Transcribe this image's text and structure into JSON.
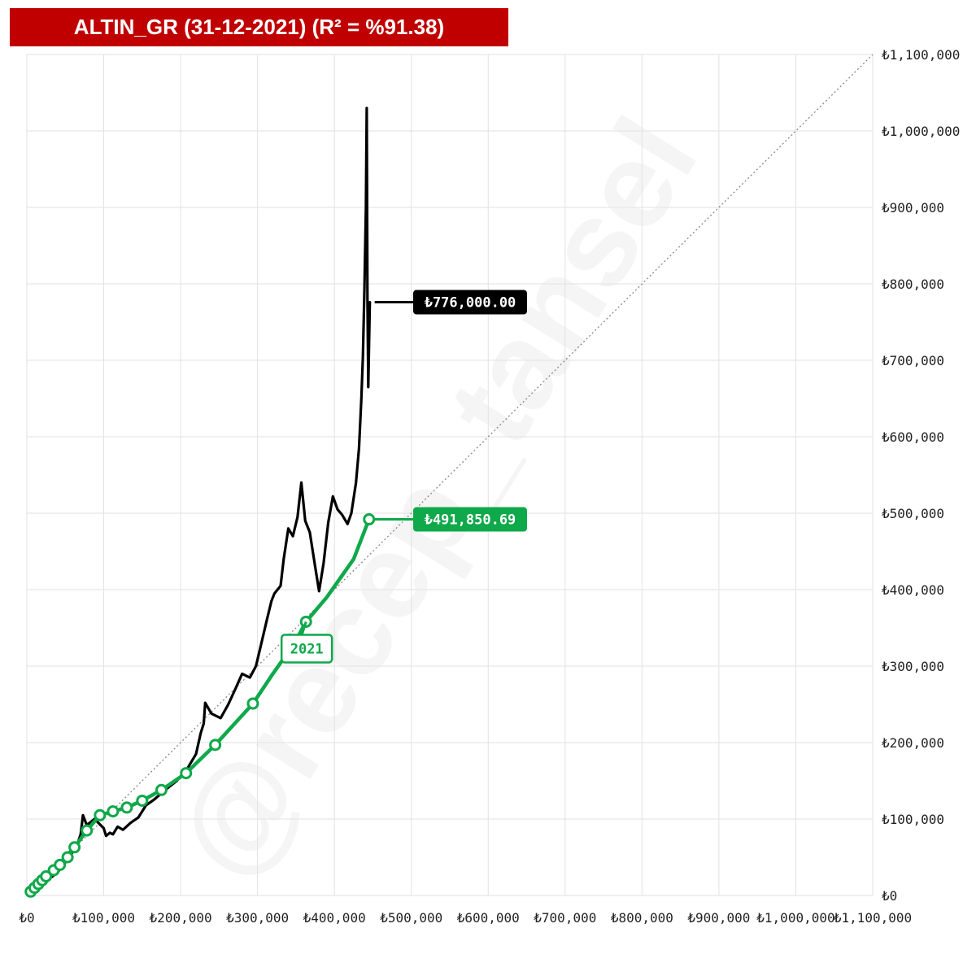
{
  "title": "ALTIN_GR (31-12-2021) (R² = %91.38)",
  "colors": {
    "title_bg": "#c00000",
    "price": "#000000",
    "trend": "#0fa84a",
    "grid": "#e2e2e2",
    "diagonal": "#888888"
  },
  "chart_data": {
    "type": "line",
    "title": "ALTIN_GR (31-12-2021) (R² = %91.38)",
    "xlim": [
      0,
      1100000
    ],
    "ylim": [
      0,
      1100000
    ],
    "x_ticks": [
      "₺0",
      "₺100,000",
      "₺200,000",
      "₺300,000",
      "₺400,000",
      "₺500,000",
      "₺600,000",
      "₺700,000",
      "₺800,000",
      "₺900,000",
      "₺1,000,000",
      "₺1,100,000"
    ],
    "y_ticks": [
      "₺0",
      "₺100,000",
      "₺200,000",
      "₺300,000",
      "₺400,000",
      "₺500,000",
      "₺600,000",
      "₺700,000",
      "₺800,000",
      "₺900,000",
      "₺1,000,000",
      "₺1,100,000"
    ],
    "grid": true,
    "reference_line": {
      "from": [
        0,
        0
      ],
      "to": [
        1100000,
        1100000
      ],
      "style": "dotted"
    },
    "series": [
      {
        "color": "#000000",
        "points": [
          [
            5000,
            5000
          ],
          [
            20000,
            15000
          ],
          [
            40000,
            30000
          ],
          [
            55000,
            50000
          ],
          [
            65000,
            65000
          ],
          [
            70000,
            80000
          ],
          [
            73000,
            105000
          ],
          [
            78000,
            92000
          ],
          [
            88000,
            100000
          ],
          [
            100000,
            88000
          ],
          [
            103000,
            78000
          ],
          [
            108000,
            82000
          ],
          [
            112000,
            80000
          ],
          [
            118000,
            90000
          ],
          [
            125000,
            86000
          ],
          [
            135000,
            95000
          ],
          [
            145000,
            102000
          ],
          [
            155000,
            118000
          ],
          [
            165000,
            125000
          ],
          [
            180000,
            138000
          ],
          [
            195000,
            150000
          ],
          [
            210000,
            168000
          ],
          [
            220000,
            185000
          ],
          [
            226000,
            212000
          ],
          [
            230000,
            225000
          ],
          [
            232000,
            252000
          ],
          [
            240000,
            238000
          ],
          [
            252000,
            232000
          ],
          [
            262000,
            250000
          ],
          [
            272000,
            272000
          ],
          [
            280000,
            290000
          ],
          [
            290000,
            285000
          ],
          [
            298000,
            300000
          ],
          [
            305000,
            330000
          ],
          [
            312000,
            360000
          ],
          [
            318000,
            385000
          ],
          [
            322000,
            395000
          ],
          [
            330000,
            405000
          ],
          [
            334000,
            440000
          ],
          [
            340000,
            480000
          ],
          [
            346000,
            470000
          ],
          [
            352000,
            495000
          ],
          [
            357000,
            540000
          ],
          [
            362000,
            490000
          ],
          [
            368000,
            475000
          ],
          [
            375000,
            430000
          ],
          [
            380000,
            398000
          ],
          [
            386000,
            435000
          ],
          [
            392000,
            488000
          ],
          [
            398000,
            522000
          ],
          [
            404000,
            505000
          ],
          [
            410000,
            498000
          ],
          [
            417000,
            486000
          ],
          [
            422000,
            500000
          ],
          [
            428000,
            540000
          ],
          [
            432000,
            585000
          ],
          [
            435000,
            650000
          ],
          [
            437000,
            705000
          ],
          [
            439000,
            795000
          ],
          [
            441000,
            900000
          ],
          [
            442000,
            1030000
          ],
          [
            443000,
            780000
          ],
          [
            444000,
            665000
          ],
          [
            446000,
            776000
          ]
        ]
      },
      {
        "color": "#0fa84a",
        "points": [
          [
            5000,
            5000
          ],
          [
            15000,
            15000
          ],
          [
            25000,
            25000
          ],
          [
            40000,
            38000
          ],
          [
            50000,
            50000
          ],
          [
            62000,
            63000
          ],
          [
            78000,
            85000
          ],
          [
            95000,
            105000
          ],
          [
            112000,
            110000
          ],
          [
            130000,
            115000
          ],
          [
            150000,
            124000
          ],
          [
            175000,
            138000
          ],
          [
            207000,
            160000
          ],
          [
            245000,
            197000
          ],
          [
            294000,
            251000
          ],
          [
            320000,
            290000
          ],
          [
            348000,
            330000
          ],
          [
            363000,
            358000
          ],
          [
            390000,
            390000
          ],
          [
            425000,
            440000
          ],
          [
            445000,
            492000
          ]
        ],
        "markers": [
          [
            5000,
            5000
          ],
          [
            10000,
            10000
          ],
          [
            15000,
            15000
          ],
          [
            20000,
            20000
          ],
          [
            25000,
            25000
          ],
          [
            35000,
            33000
          ],
          [
            43000,
            40000
          ],
          [
            53000,
            50000
          ],
          [
            62000,
            63000
          ],
          [
            78000,
            85000
          ],
          [
            95000,
            105000
          ],
          [
            112000,
            110000
          ],
          [
            130000,
            115000
          ],
          [
            150000,
            124000
          ],
          [
            175000,
            138000
          ],
          [
            207000,
            160000
          ],
          [
            245000,
            197000
          ],
          [
            294000,
            251000
          ],
          [
            363000,
            358000
          ],
          [
            445000,
            492000
          ]
        ]
      }
    ],
    "annotations": [
      {
        "label": "₺776,000.00",
        "anchor": [
          446000,
          776000
        ],
        "style": "black-box"
      },
      {
        "label": "₺491,850.69",
        "anchor": [
          445000,
          492000
        ],
        "style": "green-box"
      },
      {
        "label": "2021",
        "anchor": [
          363000,
          358000
        ],
        "style": "green-outline-box"
      }
    ]
  },
  "watermark": "@recep_tansel"
}
